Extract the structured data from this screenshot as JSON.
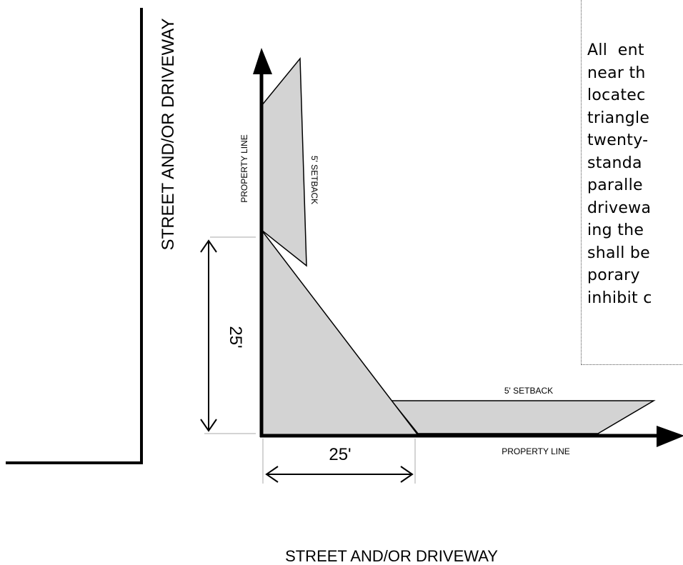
{
  "labels": {
    "street_left": "STREET AND/OR DRIVEWAY",
    "street_bottom": "STREET AND/OR DRIVEWAY",
    "property_line_vertical": "PROPERTY  LINE",
    "setback_vertical": "5'  SETBACK",
    "setback_horizontal": "5'  SETBACK",
    "property_line_horizontal": "PROPERTY  LINE",
    "dim_vertical": "25'",
    "dim_horizontal": "25'"
  },
  "note": {
    "lines": [
      "All  ent",
      "near th",
      "locatec",
      "triangle",
      "twenty-",
      "standa",
      "paralle",
      "drivewa",
      "ing the",
      "shall be",
      "porary",
      "inhibit c"
    ]
  },
  "colors": {
    "fill": "#d3d3d3",
    "stroke": "#000000",
    "guide": "#aaaaaa"
  }
}
